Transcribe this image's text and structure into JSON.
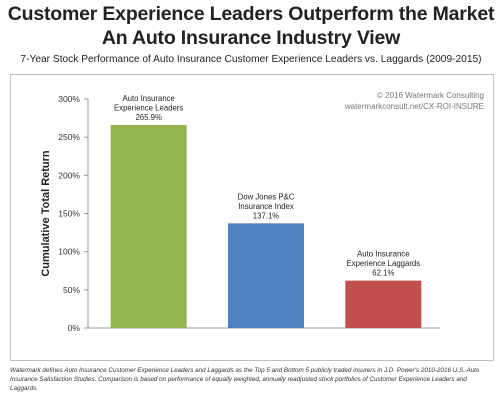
{
  "header": {
    "title_line1": "Customer Experience Leaders Outperform the Market",
    "title_line2": "An Auto Insurance Industry View",
    "subtitle": "7-Year Stock Performance of Auto Insurance Customer Experience Leaders vs. Laggards (2009-2015)"
  },
  "chart_data": {
    "type": "bar",
    "categories": [
      [
        "Auto Insurance",
        "Experience Leaders"
      ],
      [
        "Dow Jones P&C",
        "Insurance Index"
      ],
      [
        "Auto Insurance",
        "Experience Laggards"
      ]
    ],
    "values": [
      265.9,
      137.1,
      62.1
    ],
    "value_labels": [
      "265.9%",
      "137.1%",
      "62.1%"
    ],
    "colors": [
      "#93b54e",
      "#4f80c2",
      "#c0504d"
    ],
    "ylabel": "Cumulative Total Return",
    "ylim": [
      0,
      300
    ],
    "yticks": [
      0,
      50,
      100,
      150,
      200,
      250,
      300
    ],
    "ytick_labels": [
      "0%",
      "50%",
      "100%",
      "150%",
      "200%",
      "250%",
      "300%"
    ],
    "grid": false,
    "annotations": [
      "© 2016 Watermark Consulting",
      "watermarkconsult.net/CX-ROI-INSURE"
    ]
  },
  "footnote": "Watermark defines Auto Insurance Customer Experience Leaders and Laggards as the Top 5 and Bottom 5 publicly traded insurers in J.D. Power's 2010-2016 U.S. Auto Insurance Satisfaction Studies. Comparison is based on performance of equally weighted, annually readjusted stock portfolios of Customer Experience Leaders and Laggards."
}
